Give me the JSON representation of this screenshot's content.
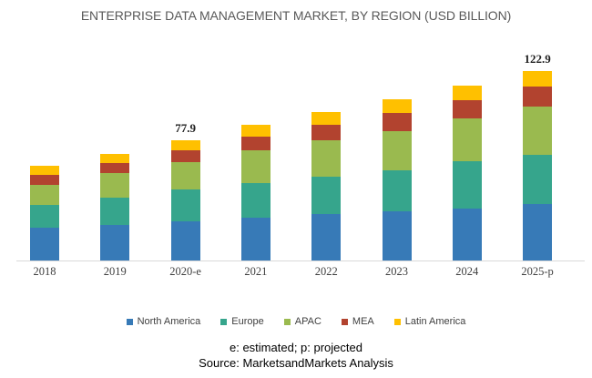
{
  "title": "ENTERPRISE DATA MANAGEMENT MARKET, BY REGION (USD BILLION)",
  "footnote": "e: estimated; p: projected",
  "source": "Source: MarketsandMarkets Analysis",
  "colors": {
    "north_america": "#377AB7",
    "europe": "#36A58C",
    "apac": "#9ABA4F",
    "mea": "#B2432F",
    "latin_america": "#FFC000",
    "axis_line": "#D9D9D9",
    "title_text": "#595959",
    "axis_text": "#404040"
  },
  "chart_data": {
    "type": "bar",
    "stacked": true,
    "title": "ENTERPRISE DATA MANAGEMENT MARKET, BY REGION (USD BILLION)",
    "unit": "USD Billion",
    "categories": [
      "2018",
      "2019",
      "2020-e",
      "2021",
      "2022",
      "2023",
      "2024",
      "2025-p"
    ],
    "series": [
      {
        "name": "North America",
        "color": "#377AB7",
        "values": [
          21.1,
          22.8,
          25.4,
          28.0,
          30.3,
          31.8,
          33.8,
          36.9
        ]
      },
      {
        "name": "Europe",
        "color": "#36A58C",
        "values": [
          15.2,
          18.0,
          20.8,
          22.1,
          24.2,
          27.0,
          30.4,
          32.0
        ]
      },
      {
        "name": "APAC",
        "color": "#9ABA4F",
        "values": [
          13.0,
          15.8,
          17.4,
          21.6,
          23.6,
          25.5,
          27.8,
          31.0
        ]
      },
      {
        "name": "MEA",
        "color": "#B2432F",
        "values": [
          6.3,
          6.5,
          8.0,
          8.9,
          9.8,
          11.3,
          12.1,
          13.2
        ]
      },
      {
        "name": "Latin America",
        "color": "#FFC000",
        "values": [
          5.9,
          6.3,
          6.3,
          7.4,
          8.3,
          8.9,
          9.4,
          9.8
        ]
      }
    ],
    "totals_usd_billion": [
      61.5,
      69.4,
      77.9,
      88.0,
      96.2,
      104.5,
      113.5,
      122.9
    ],
    "bar_labels": [
      "",
      "",
      "77.9",
      "",
      "",
      "",
      "",
      "122.9"
    ],
    "xlabel": "",
    "ylabel": "",
    "ylim": [
      0,
      130
    ],
    "grid": false,
    "legend_position": "bottom"
  }
}
